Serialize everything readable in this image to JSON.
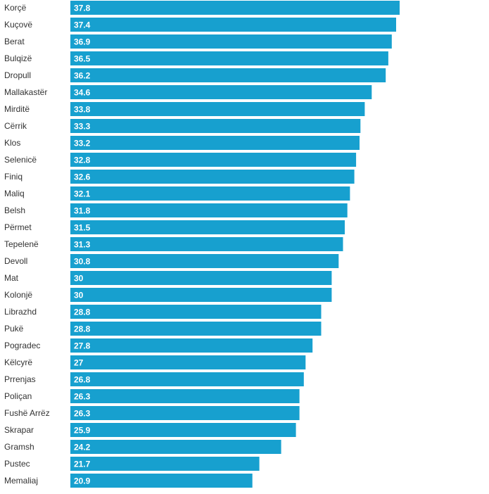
{
  "chart_data": {
    "type": "bar",
    "orientation": "horizontal",
    "title": "",
    "xlabel": "",
    "ylabel": "",
    "xlim": [
      0,
      40
    ],
    "grid": false,
    "legend": "none",
    "bar_color": "#17a0cf",
    "label_color": "#333333",
    "value_label_color": "#ffffff",
    "categories": [
      "Korçë",
      "Kuçovë",
      "Berat",
      "Bulqizë",
      "Dropull",
      "Mallakastër",
      "Mirditë",
      "Cërrik",
      "Klos",
      "Selenicë",
      "Finiq",
      "Maliq",
      "Belsh",
      "Përmet",
      "Tepelenë",
      "Devoll",
      "Mat",
      "Kolonjë",
      "Librazhd",
      "Pukë",
      "Pogradec",
      "Këlcyrë",
      "Prrenjas",
      "Poliçan",
      "Fushë Arrëz",
      "Skrapar",
      "Gramsh",
      "Pustec",
      "Memaliaj"
    ],
    "values": [
      37.8,
      37.4,
      36.9,
      36.5,
      36.2,
      34.6,
      33.8,
      33.3,
      33.2,
      32.8,
      32.6,
      32.1,
      31.8,
      31.5,
      31.3,
      30.8,
      30,
      30,
      28.8,
      28.8,
      27.8,
      27,
      26.8,
      26.3,
      26.3,
      25.9,
      24.2,
      21.7,
      20.9
    ],
    "value_labels": [
      "37.8",
      "37.4",
      "36.9",
      "36.5",
      "36.2",
      "34.6",
      "33.8",
      "33.3",
      "33.2",
      "32.8",
      "32.6",
      "32.1",
      "31.8",
      "31.5",
      "31.3",
      "30.8",
      "30",
      "30",
      "28.8",
      "28.8",
      "27.8",
      "27",
      "26.8",
      "26.3",
      "26.3",
      "25.9",
      "24.2",
      "21.7",
      "20.9"
    ]
  }
}
